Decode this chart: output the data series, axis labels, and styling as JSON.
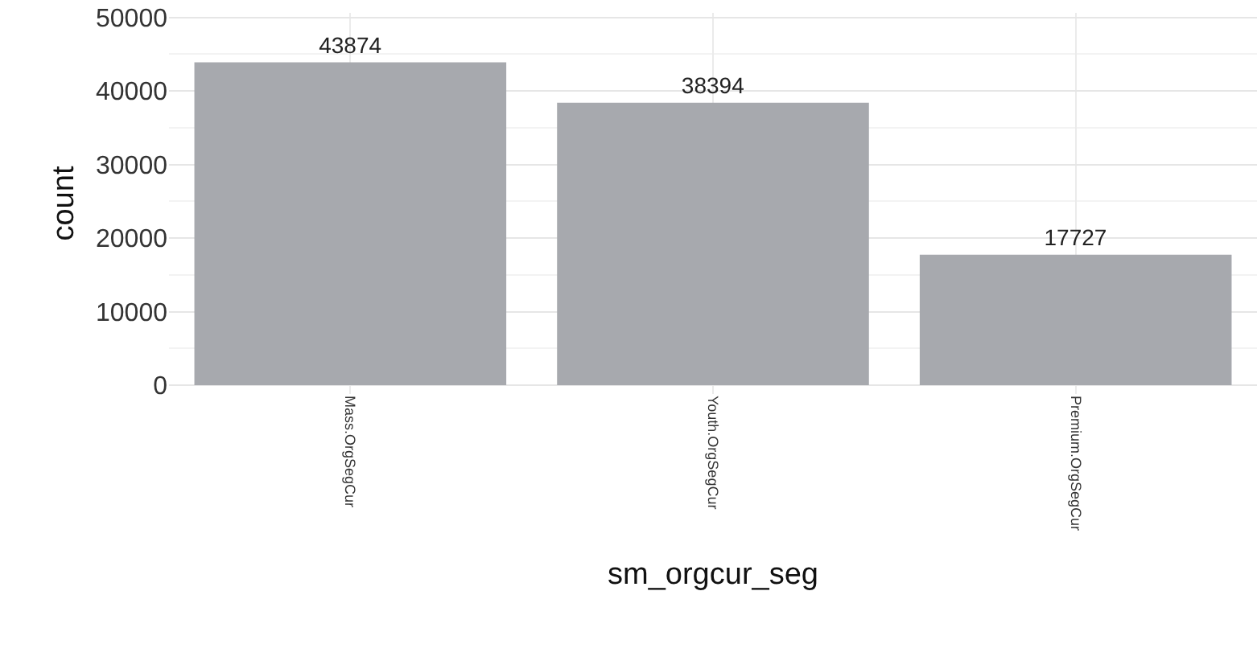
{
  "chart_data": {
    "type": "bar",
    "xlabel": "sm_orgcur_seg",
    "ylabel": "count",
    "categories": [
      "Mass.OrgSegCur",
      "Youth.OrgSegCur",
      "Premium.OrgSegCur"
    ],
    "values": [
      43874,
      38394,
      17727
    ],
    "color": "#a7a9ae",
    "ylim": [
      -1200,
      50600
    ],
    "yticks": [
      0,
      10000,
      20000,
      30000,
      40000,
      50000
    ],
    "grid": true,
    "data_labels": true
  }
}
